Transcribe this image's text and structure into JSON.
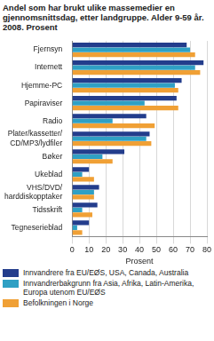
{
  "chart_data": {
    "type": "bar",
    "orientation": "horizontal",
    "title": "Andel som har brukt ulike massemedier en gjennomsnittsdag, etter landgruppe. Alder 9-59 år. 2008. Prosent",
    "x_label": "Prosent",
    "categories": [
      "Fjernsyn",
      "Internett",
      "Hjemme-PC",
      "Papiraviser",
      "Radio",
      [
        "Plater/kassetter/",
        "CD/MP3/lydfiler"
      ],
      "Bøker",
      "Ukeblad",
      [
        "VHS/DVD/",
        "harddiskopptaker"
      ],
      "Tidsskrift",
      "Tegneserieblad"
    ],
    "series": [
      {
        "name": "Innvandrere fra EU/EØS, USA, Canada, Australia",
        "color": "#233d8c",
        "values": [
          68,
          78,
          65,
          62,
          44,
          46,
          31,
          10,
          16,
          15,
          10
        ]
      },
      {
        "name": "Innvandrerbakgrunn fra Asia, Afrika, Latin-Amerika, Europa utenom EU/EØS",
        "color": "#2fa0c4",
        "values": [
          70,
          73,
          61,
          43,
          24,
          44,
          18,
          6,
          13,
          6,
          3
        ]
      },
      {
        "name": "Befolkningen i Norge",
        "color": "#f0a035",
        "values": [
          73,
          76,
          63,
          63,
          49,
          47,
          24,
          13,
          13,
          12,
          6
        ]
      }
    ],
    "xlim": [
      0,
      80
    ],
    "xticks": [
      0,
      10,
      20,
      30,
      40,
      50,
      60,
      70,
      80
    ],
    "grid": true,
    "legend": "bottom"
  }
}
